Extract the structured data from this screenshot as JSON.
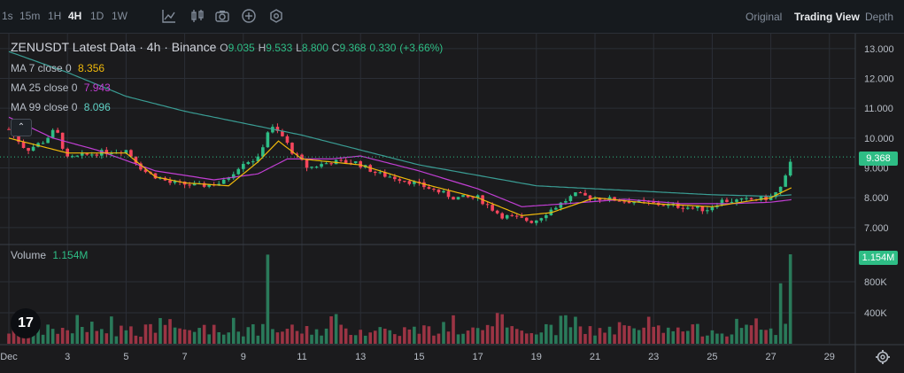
{
  "toolbar": {
    "timeframes": [
      {
        "label": "1s",
        "active": false
      },
      {
        "label": "15m",
        "active": false
      },
      {
        "label": "1H",
        "active": false
      },
      {
        "label": "4H",
        "active": true
      },
      {
        "label": "1D",
        "active": false
      },
      {
        "label": "1W",
        "active": false
      }
    ],
    "tool_icons": [
      "line-chart-icon",
      "candlestick-icon",
      "camera-icon",
      "plus-circle-icon",
      "settings-hex-icon"
    ],
    "views": [
      {
        "label": "Original",
        "active": false
      },
      {
        "label": "Trading View",
        "active": true
      },
      {
        "label": "Depth",
        "active": false
      }
    ]
  },
  "legend": {
    "title": "ZENUSDT Latest Data · 4h · Binance",
    "open_label": "O",
    "open": "9.035",
    "high_label": "H",
    "high": "9.533",
    "low_label": "L",
    "low": "8.800",
    "close_label": "C",
    "close": "9.368",
    "change": "0.330",
    "change_pct": "(+3.66%)",
    "ma7_label": "MA 7 close 0",
    "ma7_value": "8.356",
    "ma25_label": "MA 25 close 0",
    "ma25_value": "7.943",
    "ma99_label": "MA 99 close 0",
    "ma99_value": "8.096",
    "volume_label": "Volume",
    "volume_value": "1.154M",
    "collapse_glyph": "⌃"
  },
  "price_tag": "9.368",
  "volume_tag": "1.154M",
  "logo_text": "17",
  "colors": {
    "up": "#2ebd85",
    "down": "#f6465d",
    "ma7": "#f0b90b",
    "ma25": "#c03ed2",
    "ma99": "#3a9d94",
    "grid": "#2b2f36",
    "bg": "#1b1b1d"
  },
  "chart_data": {
    "type": "candlestick",
    "symbol": "ZENUSDT",
    "interval": "4h",
    "y_ticks": [
      13.0,
      12.0,
      11.0,
      10.0,
      9.0,
      8.0,
      7.0
    ],
    "y_tick_labels": [
      "13.000",
      "12.000",
      "11.000",
      "10.000",
      "9.000",
      "8.000",
      "7.000"
    ],
    "ylim": [
      6.55,
      13.5
    ],
    "volume_ticks": [
      800,
      400
    ],
    "volume_tick_labels": [
      "800K",
      "400K"
    ],
    "volume_max": 1200,
    "x_ticks": [
      "Dec",
      "3",
      "5",
      "7",
      "9",
      "11",
      "13",
      "15",
      "17",
      "19",
      "21",
      "23",
      "25",
      "27",
      "29"
    ],
    "x_tick_days": [
      1,
      3,
      5,
      7,
      9,
      11,
      13,
      15,
      17,
      19,
      21,
      23,
      25,
      27,
      29
    ],
    "x_start_day": 1,
    "last_price": 9.368,
    "day_anchors": [
      [
        1,
        10.3
      ],
      [
        1.6,
        9.6
      ],
      [
        2.2,
        9.9
      ],
      [
        2.6,
        10.3
      ],
      [
        3,
        9.3
      ],
      [
        4,
        9.5
      ],
      [
        5,
        9.6
      ],
      [
        5.6,
        8.9
      ],
      [
        6.5,
        8.5
      ],
      [
        7.5,
        8.4
      ],
      [
        8.3,
        8.5
      ],
      [
        9.0,
        9.2
      ],
      [
        9.5,
        9.3
      ],
      [
        9.9,
        10.4
      ],
      [
        10.3,
        10.1
      ],
      [
        10.7,
        9.5
      ],
      [
        11.2,
        9.0
      ],
      [
        12,
        9.2
      ],
      [
        12.8,
        9.2
      ],
      [
        13.6,
        8.8
      ],
      [
        14.5,
        8.6
      ],
      [
        15.4,
        8.3
      ],
      [
        16.2,
        8.0
      ],
      [
        17,
        8.0
      ],
      [
        17.8,
        7.4
      ],
      [
        18.4,
        7.3
      ],
      [
        18.9,
        7.2
      ],
      [
        19.5,
        7.6
      ],
      [
        20.3,
        8.1
      ],
      [
        21,
        8.0
      ],
      [
        22,
        7.9
      ],
      [
        23,
        7.8
      ],
      [
        24,
        7.7
      ],
      [
        24.8,
        7.6
      ],
      [
        25.3,
        7.9
      ],
      [
        26,
        7.9
      ],
      [
        27,
        8.0
      ],
      [
        27.4,
        8.4
      ],
      [
        27.75,
        9.37
      ]
    ],
    "ma7_anchors": [
      [
        1,
        10.0
      ],
      [
        3,
        9.5
      ],
      [
        5,
        9.5
      ],
      [
        6,
        8.7
      ],
      [
        7,
        8.5
      ],
      [
        8.5,
        8.4
      ],
      [
        9.5,
        9.2
      ],
      [
        10.2,
        9.9
      ],
      [
        11,
        9.3
      ],
      [
        13,
        9.1
      ],
      [
        15,
        8.5
      ],
      [
        17,
        8.0
      ],
      [
        18.5,
        7.4
      ],
      [
        19.5,
        7.5
      ],
      [
        21,
        8.0
      ],
      [
        23,
        7.8
      ],
      [
        25,
        7.7
      ],
      [
        27,
        8.0
      ],
      [
        27.75,
        8.36
      ]
    ],
    "ma25_anchors": [
      [
        1,
        10.7
      ],
      [
        2.5,
        10.0
      ],
      [
        4,
        9.6
      ],
      [
        6,
        8.9
      ],
      [
        8,
        8.6
      ],
      [
        9.5,
        8.8
      ],
      [
        10.5,
        9.3
      ],
      [
        12,
        9.3
      ],
      [
        13,
        9.4
      ],
      [
        15,
        8.9
      ],
      [
        17,
        8.3
      ],
      [
        18.5,
        7.7
      ],
      [
        20,
        7.8
      ],
      [
        22,
        7.95
      ],
      [
        24,
        7.8
      ],
      [
        25.5,
        7.8
      ],
      [
        27,
        7.85
      ],
      [
        27.75,
        7.94
      ]
    ],
    "ma99_anchors": [
      [
        1,
        12.9
      ],
      [
        3,
        12.2
      ],
      [
        5,
        11.4
      ],
      [
        7,
        10.9
      ],
      [
        9,
        10.5
      ],
      [
        11,
        10.1
      ],
      [
        13,
        9.6
      ],
      [
        15,
        9.1
      ],
      [
        17,
        8.75
      ],
      [
        19,
        8.4
      ],
      [
        21,
        8.3
      ],
      [
        23,
        8.2
      ],
      [
        25,
        8.1
      ],
      [
        27,
        8.05
      ],
      [
        27.75,
        8.1
      ]
    ],
    "volume_spikes": [
      [
        9.8,
        1150
      ],
      [
        27.6,
        1154
      ],
      [
        27.4,
        780
      ]
    ]
  }
}
